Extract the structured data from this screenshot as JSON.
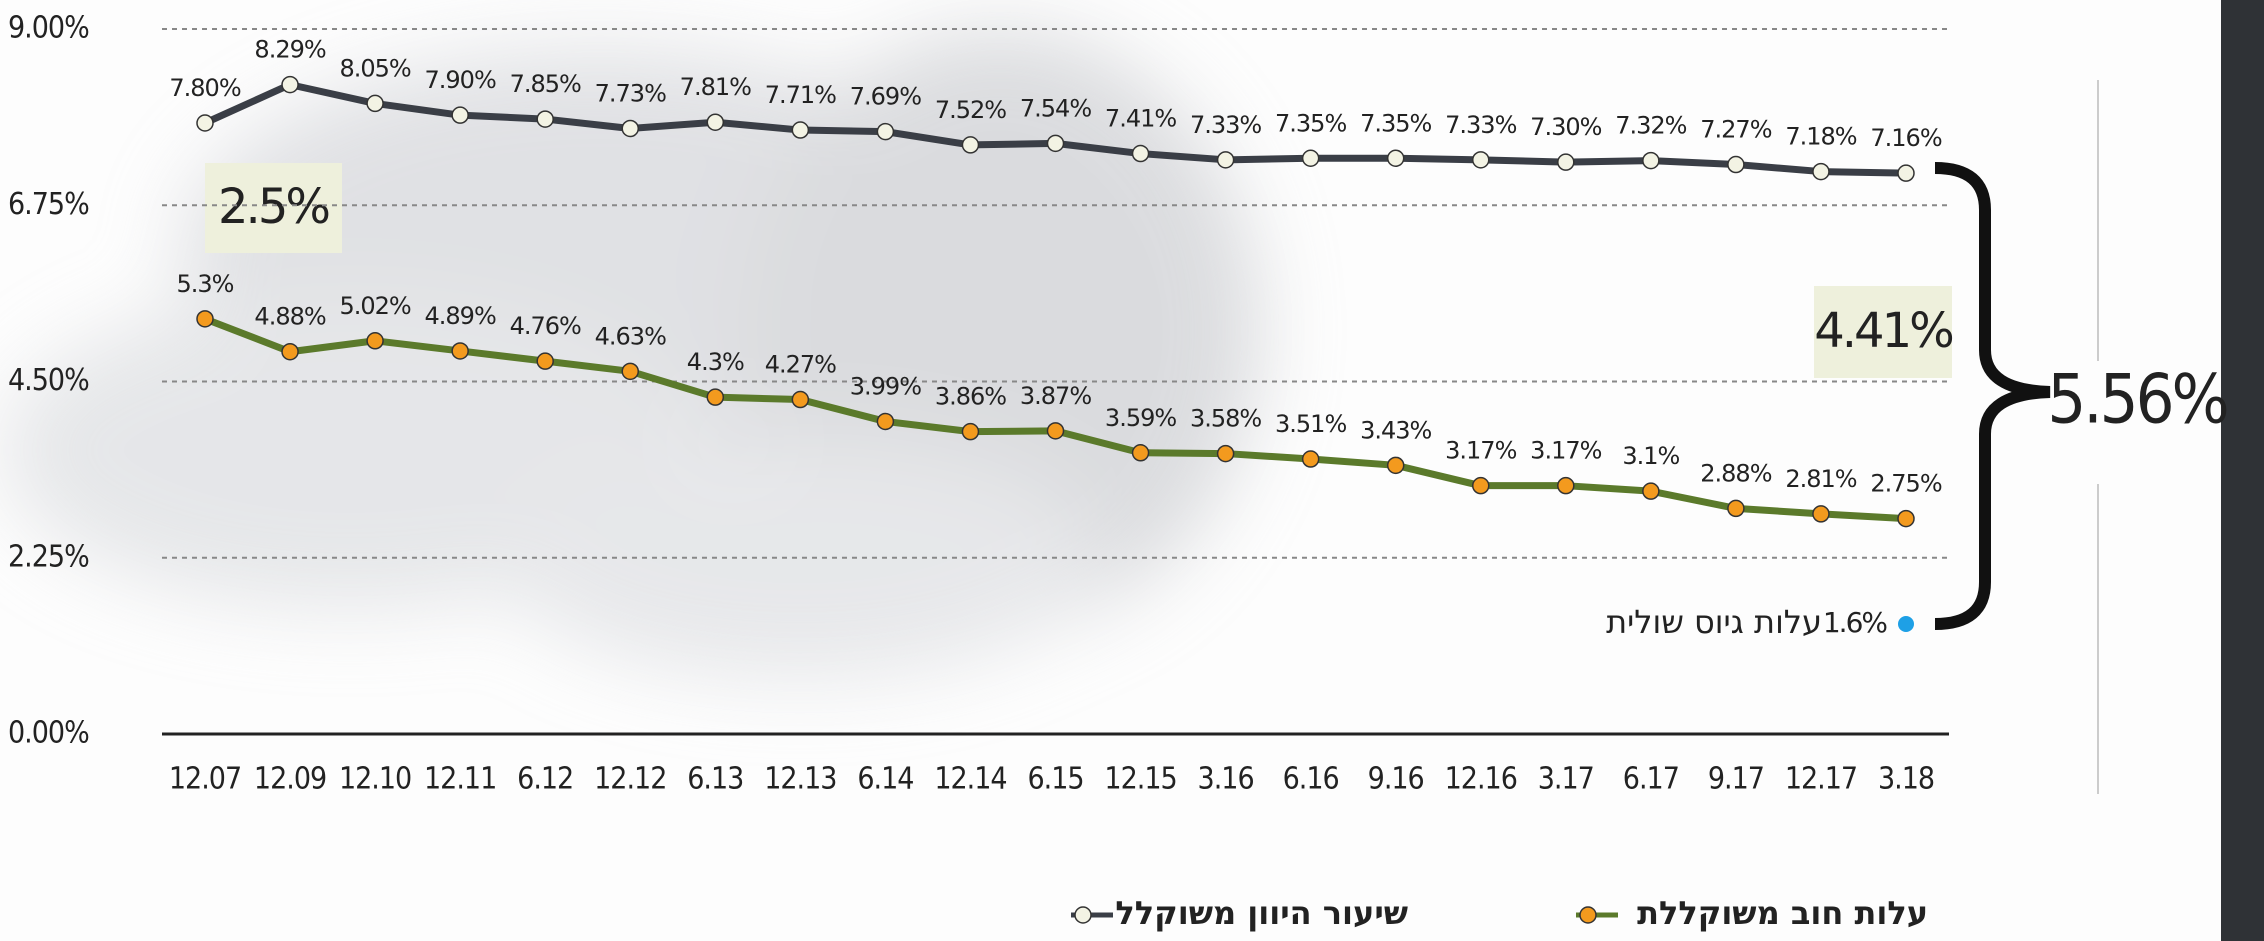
{
  "chart_data": {
    "type": "line",
    "categories": [
      "12.07",
      "12.09",
      "12.10",
      "12.11",
      "6.12",
      "12.12",
      "6.13",
      "12.13",
      "6.14",
      "12.14",
      "6.15",
      "12.15",
      "3.16",
      "6.16",
      "9.16",
      "12.16",
      "3.17",
      "6.17",
      "9.17",
      "12.17",
      "3.18"
    ],
    "series": [
      {
        "name": "שיעור היוון משוקלל",
        "color": "#3a3e46",
        "marker_color": "#f3f3e4",
        "values": [
          7.8,
          8.29,
          8.05,
          7.9,
          7.85,
          7.73,
          7.81,
          7.71,
          7.69,
          7.52,
          7.54,
          7.41,
          7.33,
          7.35,
          7.35,
          7.33,
          7.3,
          7.32,
          7.27,
          7.18,
          7.16
        ],
        "value_labels": [
          "7.80%",
          "8.29%",
          "8.05%",
          "7.90%",
          "7.85%",
          "7.73%",
          "7.81%",
          "7.71%",
          "7.69%",
          "7.52%",
          "7.54%",
          "7.41%",
          "7.33%",
          "7.35%",
          "7.35%",
          "7.33%",
          "7.30%",
          "7.32%",
          "7.27%",
          "7.18%",
          "7.16%"
        ]
      },
      {
        "name": "עלות חוב משוקללת",
        "color": "#5b7a2b",
        "marker_color": "#f39a1e",
        "values": [
          5.3,
          4.88,
          5.02,
          4.89,
          4.76,
          4.63,
          4.3,
          4.27,
          3.99,
          3.86,
          3.87,
          3.59,
          3.58,
          3.51,
          3.43,
          3.17,
          3.17,
          3.1,
          2.88,
          2.81,
          2.75
        ],
        "value_labels": [
          "5.3%",
          "4.88%",
          "5.02%",
          "4.89%",
          "4.76%",
          "4.63%",
          "4.3%",
          "4.27%",
          "3.99%",
          "3.86%",
          "3.87%",
          "3.59%",
          "3.58%",
          "3.51%",
          "3.43%",
          "3.17%",
          "3.17%",
          "3.1%",
          "2.88%",
          "2.81%",
          "2.75%"
        ]
      }
    ],
    "ylim": [
      0,
      9
    ],
    "yticks": [
      {
        "value": 0,
        "label": "0.00%"
      },
      {
        "value": 2.25,
        "label": "2.25%"
      },
      {
        "value": 4.5,
        "label": "4.50%"
      },
      {
        "value": 6.75,
        "label": "6.75%"
      },
      {
        "value": 9,
        "label": "9.00%"
      }
    ],
    "grid": true,
    "annotations": [
      "2.5%",
      "4.41%",
      "5.56%",
      "1.6%",
      "עלות גיוס שולית"
    ]
  }
}
